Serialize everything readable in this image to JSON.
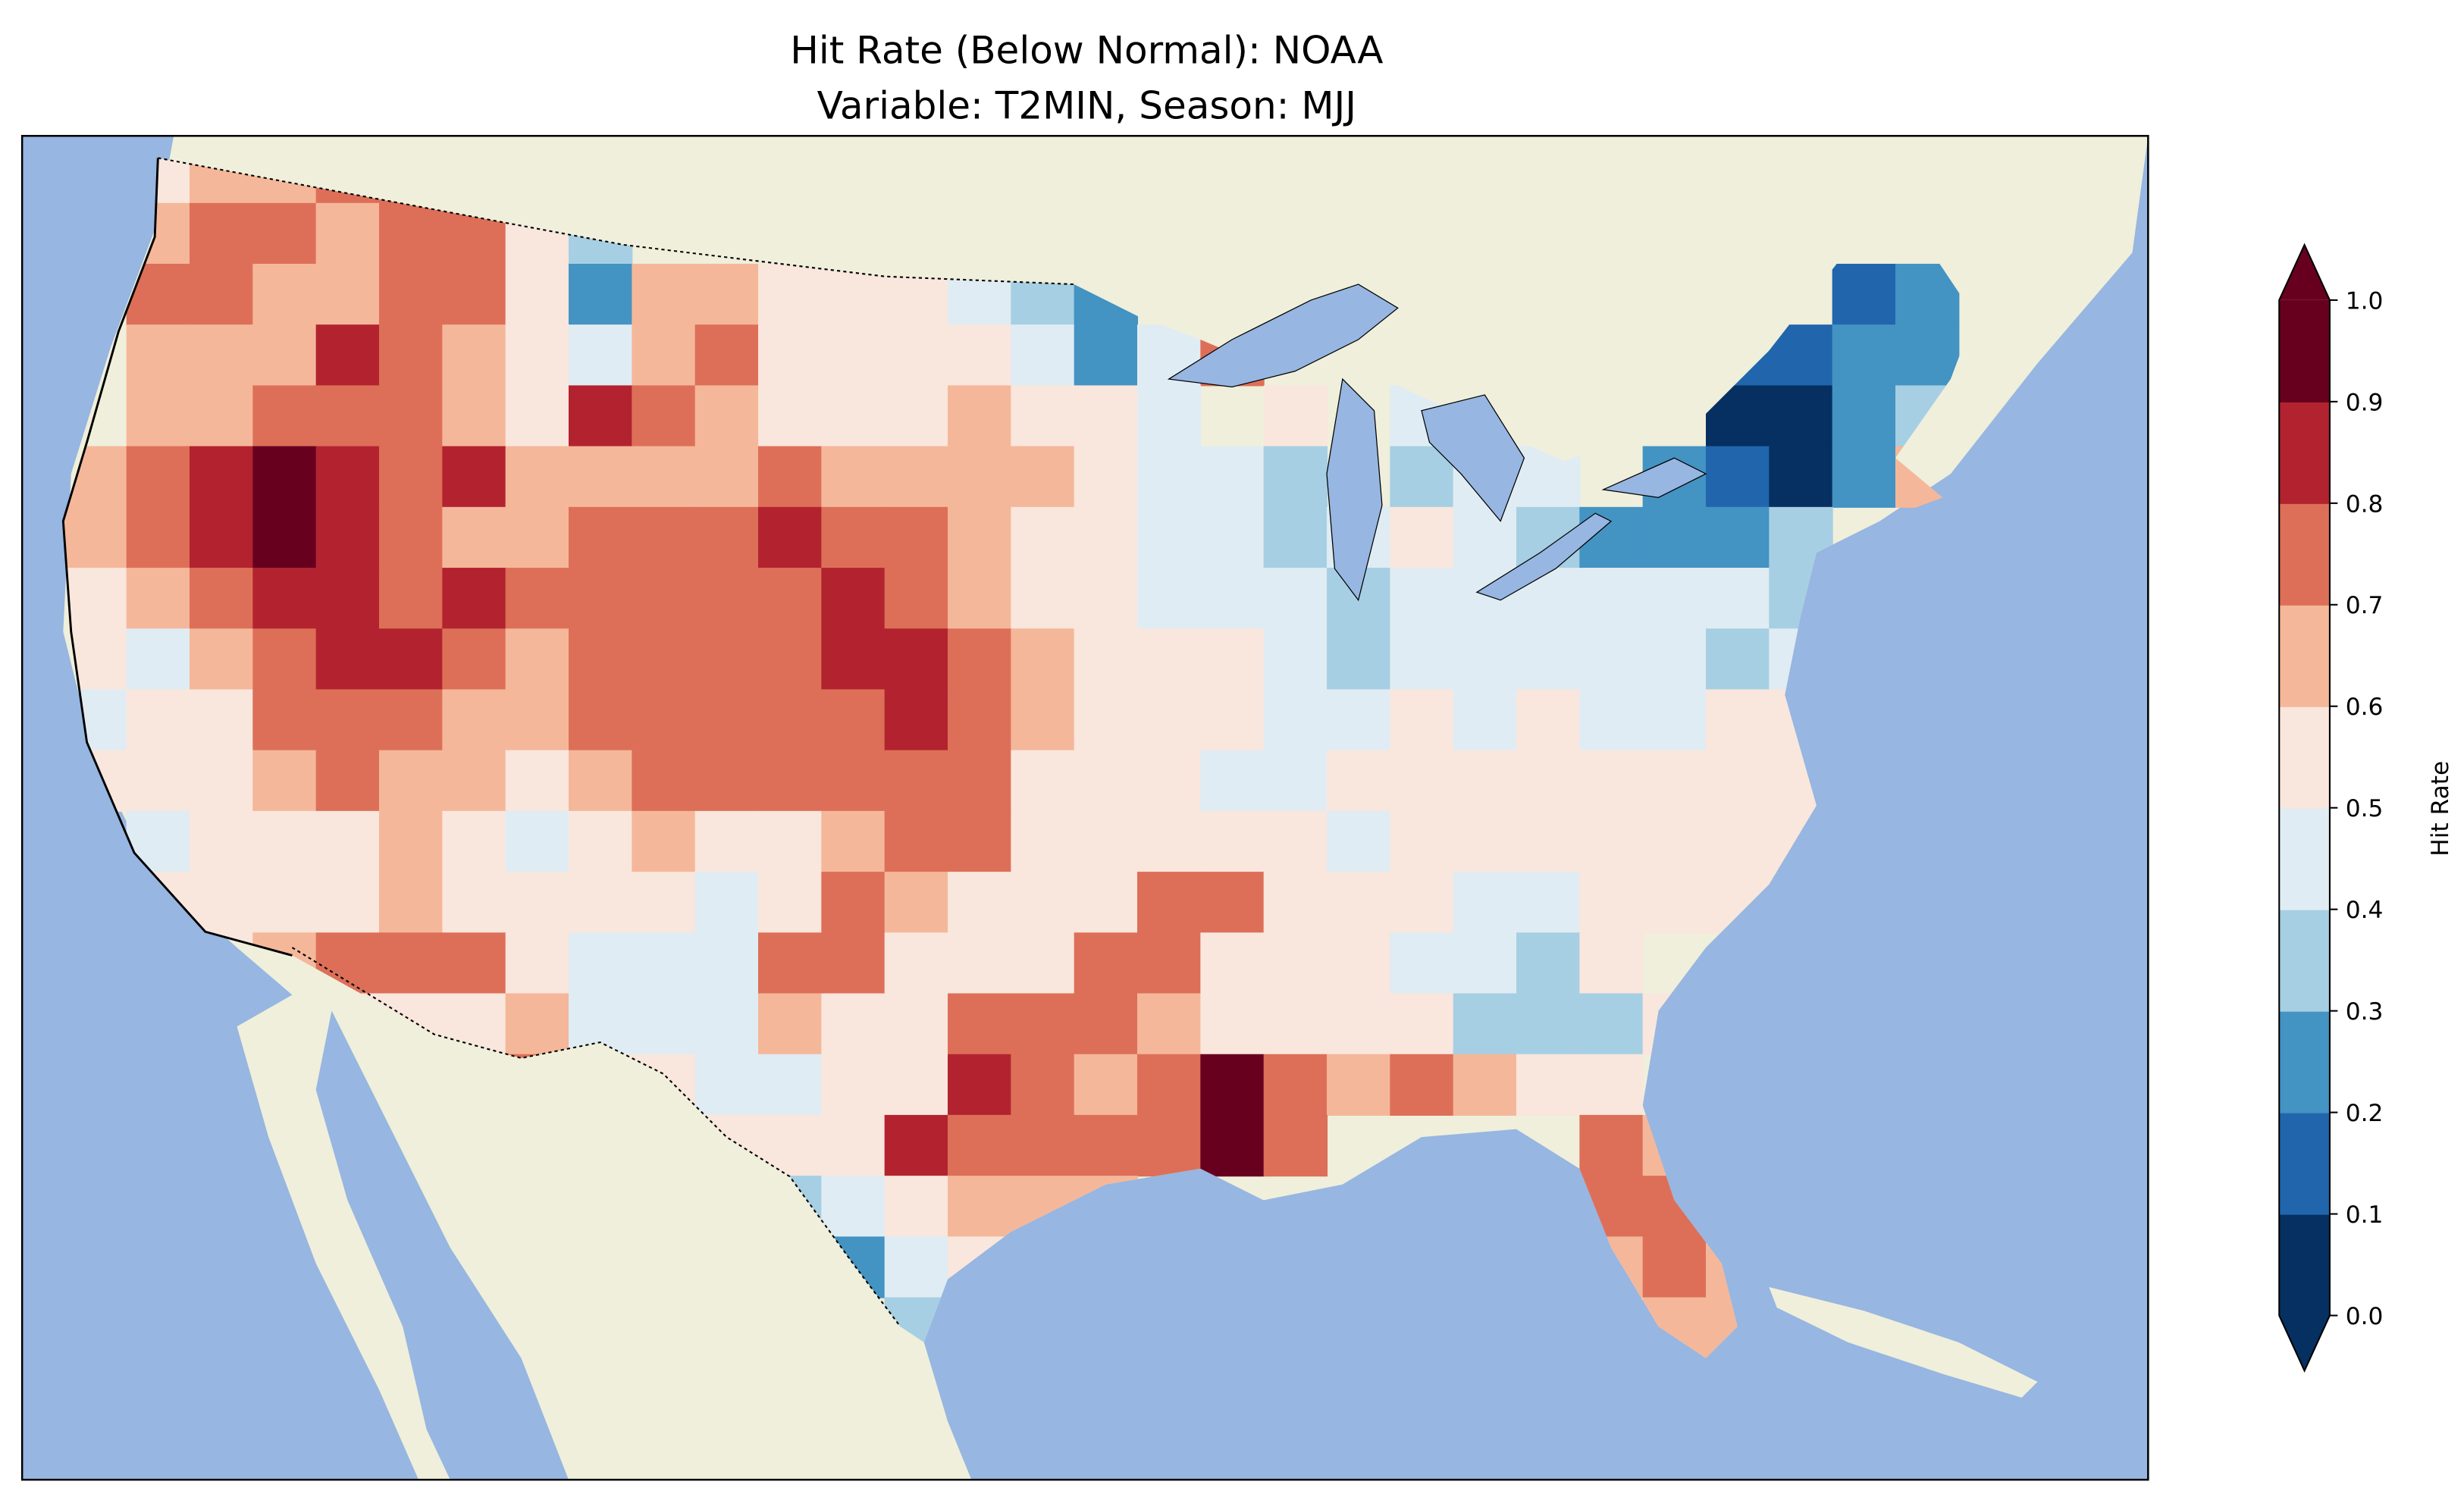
{
  "title": {
    "line1": "Hit Rate (Below Normal): NOAA",
    "line2": "Variable: T2MIN, Season: MJJ"
  },
  "colors": {
    "ocean": "#97b6e1",
    "land": "#efefdb",
    "lakes": "#97b6e1",
    "bins": [
      "#053061",
      "#2166ac",
      "#4393c3",
      "#a6cfe3",
      "#e0ecf3",
      "#f9e6dd",
      "#f5b79a",
      "#dd6f58",
      "#b3232f",
      "#67001f"
    ]
  },
  "chart_data": {
    "type": "heatmap",
    "title": "Hit Rate (Below Normal): NOAA / Variable: T2MIN, Season: MJJ",
    "region": "Contiguous United States",
    "value_bins": "each digit d = hit-rate bin [d/10, (d+1)/10); '.' = no data",
    "grid_rows_north_to_south": [
      ".566776.......................",
      ".67767753.....................",
      ".7766775266555432...........12",
      ".666876546755554247.......1122",
      ".66777658765556554.5.4....0023",
      "67898786666766665443.344.21026",
      "6789876677787765544345432223..",
      "5678878777778765544434444443..",
      "5467887677778876555434444434..",
      "4557776677777876555445454455..",
      "5556766567777775554455555555..",
      ".4555654565567755555455555555..",
      ".5555655554576555775554455555.",
      "..56777544477555775554435....",
      "....5556444655777655553335...",
      ".......755445587679767655.....",
      ".........45558777797....76....",
      "...........345666.......77....",
      "............245.........676...",
      ".............3...........66..."
    ],
    "colorbar": {
      "label": "Hit Rate",
      "ticks": [
        "0.0",
        "0.1",
        "0.2",
        "0.3",
        "0.4",
        "0.5",
        "0.6",
        "0.7",
        "0.8",
        "0.9",
        "1.0"
      ],
      "range": [
        0.0,
        1.0
      ],
      "extend": "both"
    }
  }
}
